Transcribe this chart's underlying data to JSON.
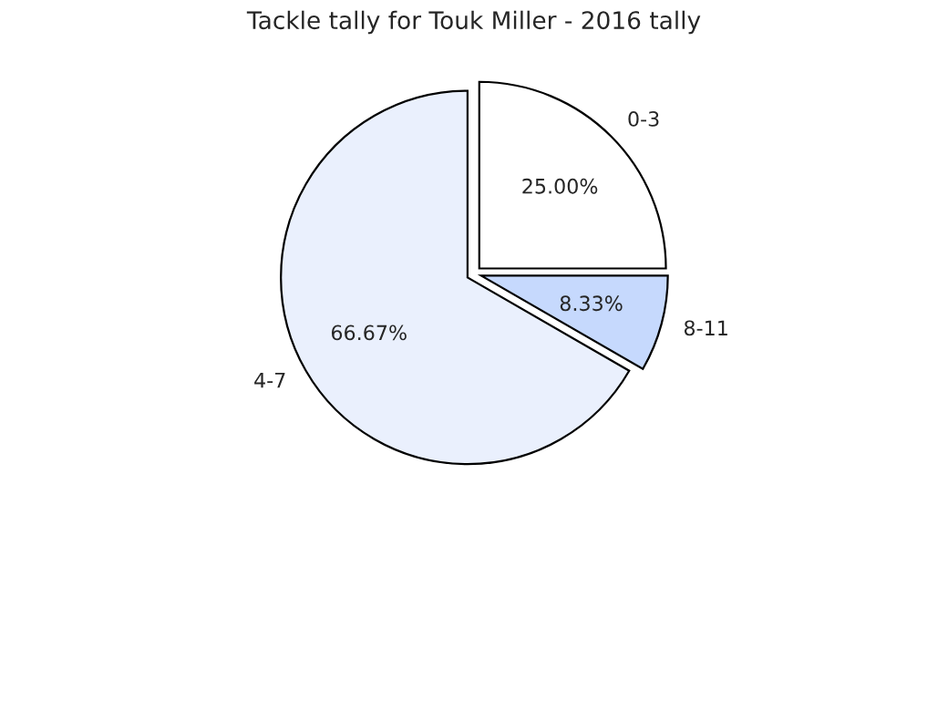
{
  "chart_data": {
    "type": "pie",
    "title": "Tackle tally for Touk Miller - 2016 tally",
    "categories": [
      "0-3",
      "8-11",
      "4-7"
    ],
    "values": [
      25.0,
      8.33,
      66.67
    ],
    "value_labels": [
      "25.00%",
      "8.33%",
      "66.67%"
    ],
    "colors": [
      "#ffffff",
      "#c6d9fd",
      "#eaf0fd"
    ],
    "legend": false
  }
}
